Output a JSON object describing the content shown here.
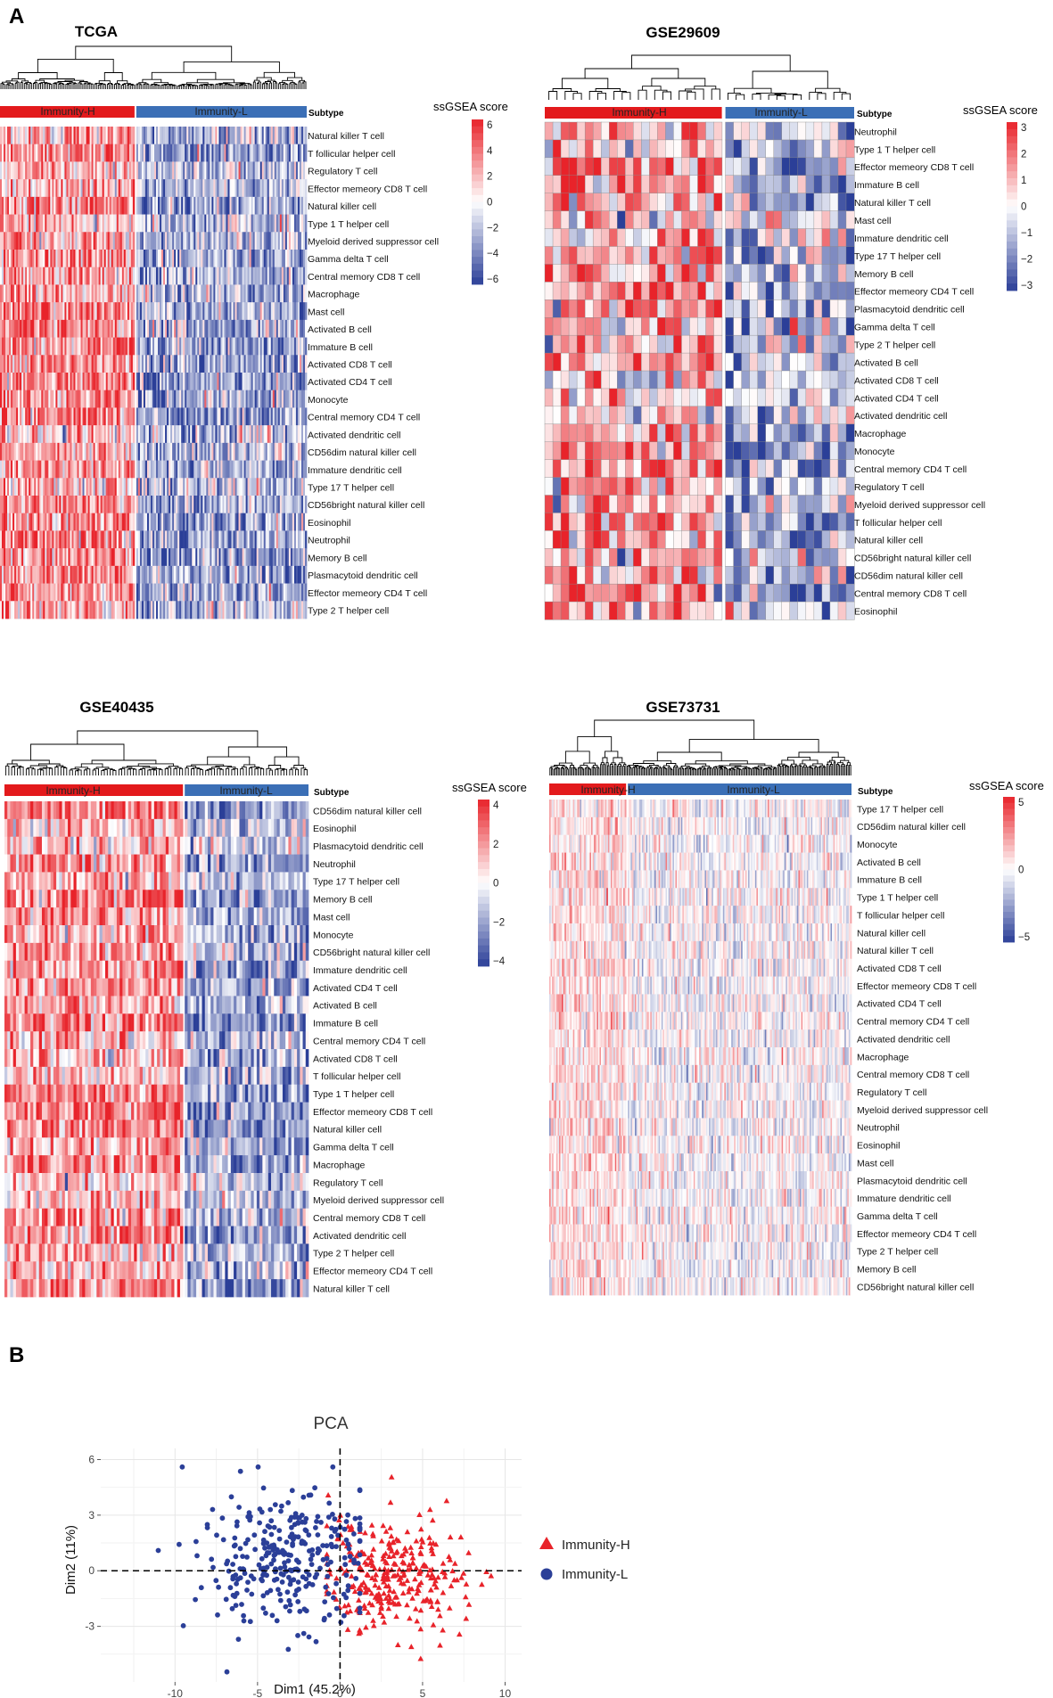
{
  "panel_labels": {
    "A": "A",
    "B": "B"
  },
  "heatmap_common": {
    "subtype_label": "Subtype",
    "legend_title": "ssGSEA score",
    "group_high": "Immunity-H",
    "group_low": "Immunity-L",
    "color_high": "#e31a1c",
    "color_low": "#3b6fb6",
    "color_red": "#e8232a",
    "color_blue": "#2b3f98"
  },
  "heatmaps": [
    {
      "id": "tcga",
      "title": "TCGA",
      "n_high": 75,
      "n_low": 95,
      "grid_lines": false,
      "row_spread": 2.0,
      "legend_ticks": [
        "6",
        "4",
        "2",
        "0",
        "−2",
        "−4",
        "−6"
      ],
      "rows": [
        "Natural killer T cell",
        "T follicular helper cell",
        "Regulatory T cell",
        "Effector memeory CD8 T cell",
        "Natural killer cell",
        "Type 1 T helper cell",
        "Myeloid derived suppressor cell",
        "Gamma delta T cell",
        "Central memory CD8 T cell",
        "Macrophage",
        "Mast cell",
        "Activated B cell",
        "Immature  B cell",
        "Activated CD8 T cell",
        "Activated CD4 T cell",
        "Monocyte",
        "Central memory CD4 T cell",
        "Activated dendritic cell",
        "CD56dim natural killer cell",
        "Immature dendritic cell",
        "Type 17 T helper cell",
        "CD56bright natural killer cell",
        "Eosinophil",
        "Neutrophil",
        "Memory B cell",
        "Plasmacytoid dendritic cell",
        "Effector memeory CD4 T cell",
        "Type 2 T helper cell"
      ]
    },
    {
      "id": "gse29609",
      "title": "GSE29609",
      "n_high": 22,
      "n_low": 16,
      "grid_lines": true,
      "row_spread": 2.6,
      "legend_ticks": [
        "3",
        "2",
        "1",
        "0",
        "−1",
        "−2",
        "−3"
      ],
      "rows": [
        "Neutrophil",
        "Type 1 T helper cell",
        "Effector memeory CD8 T cell",
        "Immature  B cell",
        "Natural killer T cell",
        "Mast cell",
        "Immature dendritic cell",
        "Type 17 T helper cell",
        "Memory B cell",
        "Effector memeory CD4 T cell",
        "Plasmacytoid dendritic cell",
        "Gamma delta T cell",
        "Type 2 T helper cell",
        "Activated B cell",
        "Activated CD8 T cell",
        "Activated CD4 T cell",
        "Activated dendritic cell",
        "Macrophage",
        "Monocyte",
        "Central memory CD4 T cell",
        "Regulatory T cell",
        "Myeloid derived suppressor cell",
        "T follicular helper cell",
        "Natural killer cell",
        "CD56bright natural killer cell",
        "CD56dim natural killer cell",
        "Central memory CD8 T cell",
        "Eosinophil"
      ]
    },
    {
      "id": "gse40435",
      "title": "GSE40435",
      "n_high": 62,
      "n_low": 43,
      "grid_lines": false,
      "row_spread": 1.8,
      "legend_ticks": [
        "4",
        "2",
        "0",
        "−2",
        "−4"
      ],
      "rows": [
        "CD56dim natural killer cell",
        "Eosinophil",
        "Plasmacytoid dendritic cell",
        "Neutrophil",
        "Type 17 T helper cell",
        "Memory B cell",
        "Mast cell",
        "Monocyte",
        "CD56bright natural killer cell",
        "Immature dendritic cell",
        "Activated CD4 T cell",
        "Activated B cell",
        "Immature  B cell",
        "Central memory CD4 T cell",
        "Activated CD8 T cell",
        "T follicular helper cell",
        "Type 1 T helper cell",
        "Effector memeory CD8 T cell",
        "Natural killer cell",
        "Gamma delta T cell",
        "Macrophage",
        "Regulatory T cell",
        "Myeloid derived suppressor cell",
        "Central memory CD8 T cell",
        "Activated dendritic cell",
        "Type 2 T helper cell",
        "Effector memeory CD4 T cell",
        "Natural killer T cell"
      ]
    },
    {
      "id": "gse73731",
      "title": "GSE73731",
      "n_high": 55,
      "n_low": 160,
      "grid_lines": false,
      "row_spread": 1.5,
      "legend_ticks": [
        "5",
        "0",
        "−5"
      ],
      "rows": [
        "Type 17 T helper cell",
        "CD56dim natural killer cell",
        "Monocyte",
        "Activated B cell",
        "Immature  B cell",
        "Type 1 T helper cell",
        "T follicular helper cell",
        "Natural killer cell",
        "Natural killer T cell",
        "Activated CD8 T cell",
        "Effector memeory CD8 T cell",
        "Activated CD4 T cell",
        "Central memory CD4 T cell",
        "Activated dendritic cell",
        "Macrophage",
        "Central memory CD8 T cell",
        "Regulatory T cell",
        "Myeloid derived suppressor cell",
        "Neutrophil",
        "Eosinophil",
        "Mast cell",
        "Plasmacytoid dendritic cell",
        "Immature dendritic cell",
        "Gamma delta T cell",
        "Effector memeory CD4 T cell",
        "Type 2 T helper cell",
        "Memory B cell",
        "CD56bright natural killer cell"
      ]
    }
  ],
  "chart_data": {
    "type": "scatter",
    "title": "PCA",
    "xlabel": "Dim1 (45.2%)",
    "ylabel": "Dim2 (11%)",
    "xlim": [
      -14.5,
      11
    ],
    "ylim": [
      -6,
      6.6
    ],
    "xticks": [
      -10,
      -5,
      0,
      5,
      10
    ],
    "yticks": [
      -3,
      0,
      3,
      6
    ],
    "reference_lines": {
      "x": 0,
      "y": 0
    },
    "series": [
      {
        "name": "Immunity-H",
        "marker": "triangle",
        "color": "#e8232a",
        "n": 300,
        "center": [
          3.3,
          -0.3
        ],
        "spread": [
          2.2,
          1.6
        ]
      },
      {
        "name": "Immunity-L",
        "marker": "circle",
        "color": "#2b3f98",
        "n": 300,
        "center": [
          -3.2,
          0.6
        ],
        "spread": [
          2.6,
          1.9
        ]
      }
    ],
    "legend": [
      {
        "label": "Immunity-H",
        "marker": "triangle",
        "color": "#e8232a"
      },
      {
        "label": "Immunity-L",
        "marker": "circle",
        "color": "#2b3f98"
      }
    ]
  }
}
